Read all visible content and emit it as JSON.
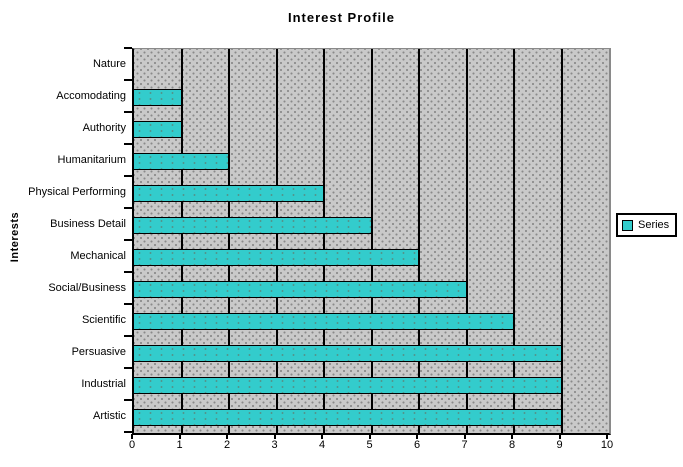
{
  "chart_data": {
    "type": "bar",
    "orientation": "horizontal",
    "title": "Interest Profile",
    "ylabel": "Interests",
    "xlabel": "",
    "categories": [
      "Nature",
      "Accomodating",
      "Authority",
      "Humanitarium",
      "Physical Performing",
      "Business Detail",
      "Mechanical",
      "Social/Business",
      "Scientific",
      "Persuasive",
      "Industrial",
      "Artistic"
    ],
    "values": [
      0,
      1,
      1,
      2,
      4,
      5,
      6,
      7,
      8,
      9,
      9,
      9
    ],
    "xlim": [
      0,
      10
    ],
    "xticks": [
      0,
      1,
      2,
      3,
      4,
      5,
      6,
      7,
      8,
      9,
      10
    ],
    "grid": "vertical-unit-gridlines",
    "legend": {
      "position": "right",
      "entries": [
        {
          "label": "Series",
          "color": "#33cccc"
        }
      ]
    },
    "colors": {
      "bar": "#33cccc",
      "bar_border": "#000000",
      "plot_background": "#c9c9c9",
      "plot_stipple_dot": "#8a8a8a",
      "gridline": "#000000",
      "page_background": "#ffffff"
    }
  }
}
